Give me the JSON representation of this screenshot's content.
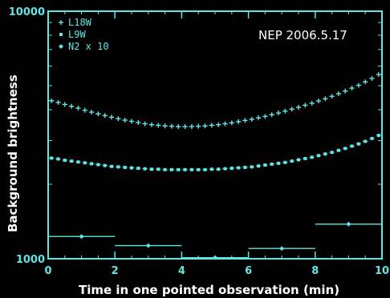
{
  "colors": {
    "background": "#000000",
    "axes": "#5fe6e6",
    "series": "#5fe6e6",
    "title_text": "#ffffff"
  },
  "chart_data": {
    "type": "scatter",
    "title": "",
    "xlabel": "Time in one pointed observation (min)",
    "ylabel": "Background brightness",
    "xlim": [
      0,
      10
    ],
    "ylim": [
      1000,
      10000
    ],
    "yscale": "log",
    "x_ticks": [
      "0",
      "2",
      "4",
      "6",
      "8",
      "10"
    ],
    "y_ticks": [
      "1000",
      "10000"
    ],
    "annotation": "NEP 2006.5.17",
    "legend_position": "top-left",
    "series": [
      {
        "name": "L18W",
        "marker": "plus",
        "x": [
          0.1,
          0.3,
          0.5,
          0.7,
          0.9,
          1.1,
          1.3,
          1.5,
          1.7,
          1.9,
          2.1,
          2.3,
          2.5,
          2.7,
          2.9,
          3.1,
          3.3,
          3.5,
          3.7,
          3.9,
          4.1,
          4.3,
          4.5,
          4.7,
          4.9,
          5.1,
          5.3,
          5.5,
          5.7,
          5.9,
          6.1,
          6.3,
          6.5,
          6.7,
          6.9,
          7.1,
          7.3,
          7.5,
          7.7,
          7.9,
          8.1,
          8.3,
          8.5,
          8.7,
          8.9,
          9.1,
          9.3,
          9.5,
          9.7,
          9.9
        ],
        "y": [
          4350,
          4280,
          4200,
          4130,
          4060,
          3980,
          3910,
          3850,
          3790,
          3730,
          3680,
          3630,
          3590,
          3550,
          3510,
          3480,
          3460,
          3440,
          3430,
          3420,
          3420,
          3420,
          3430,
          3440,
          3460,
          3480,
          3510,
          3540,
          3580,
          3620,
          3660,
          3710,
          3760,
          3820,
          3880,
          3950,
          4020,
          4090,
          4170,
          4250,
          4340,
          4430,
          4530,
          4640,
          4760,
          4890,
          5020,
          5180,
          5350,
          5550
        ]
      },
      {
        "name": "L9W",
        "marker": "square",
        "x": [
          0.1,
          0.3,
          0.5,
          0.7,
          0.9,
          1.1,
          1.3,
          1.5,
          1.7,
          1.9,
          2.1,
          2.3,
          2.5,
          2.7,
          2.9,
          3.1,
          3.3,
          3.5,
          3.7,
          3.9,
          4.1,
          4.3,
          4.5,
          4.7,
          4.9,
          5.1,
          5.3,
          5.5,
          5.7,
          5.9,
          6.1,
          6.3,
          6.5,
          6.7,
          6.9,
          7.1,
          7.3,
          7.5,
          7.7,
          7.9,
          8.1,
          8.3,
          8.5,
          8.7,
          8.9,
          9.1,
          9.3,
          9.5,
          9.7,
          9.9
        ],
        "y": [
          2550,
          2530,
          2500,
          2480,
          2460,
          2440,
          2420,
          2400,
          2380,
          2360,
          2350,
          2340,
          2330,
          2320,
          2310,
          2300,
          2300,
          2290,
          2290,
          2290,
          2290,
          2290,
          2290,
          2290,
          2300,
          2300,
          2310,
          2320,
          2330,
          2340,
          2350,
          2370,
          2390,
          2410,
          2430,
          2450,
          2480,
          2510,
          2540,
          2570,
          2610,
          2650,
          2690,
          2740,
          2790,
          2850,
          2910,
          2980,
          3060,
          3150
        ]
      },
      {
        "name": "N2 x 10",
        "marker": "diamond",
        "x": [
          1.0,
          3.0,
          5.0,
          7.0,
          9.0
        ],
        "xerr": [
          1.0,
          1.0,
          1.0,
          1.0,
          1.0
        ],
        "y": [
          1230,
          1130,
          1010,
          1100,
          1380
        ]
      }
    ]
  }
}
